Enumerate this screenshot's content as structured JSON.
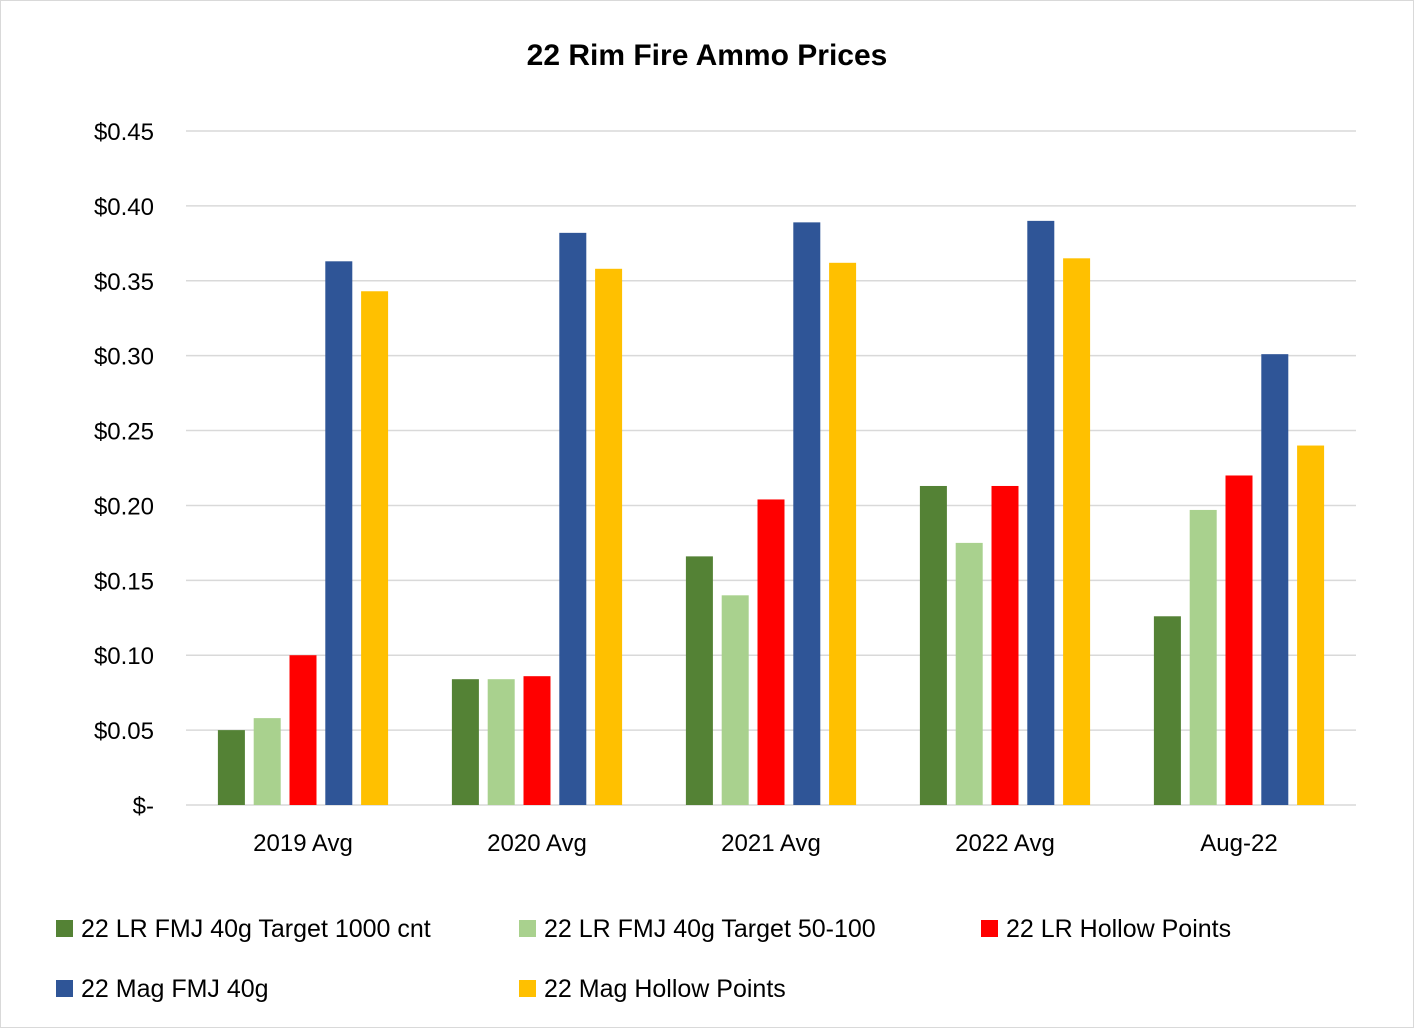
{
  "chart_data": {
    "type": "bar",
    "title": "22 Rim Fire Ammo Prices",
    "categories": [
      "2019 Avg",
      "2020 Avg",
      "2021 Avg",
      "2022 Avg",
      "Aug-22"
    ],
    "ylim": [
      0,
      0.45
    ],
    "y_ticks": [
      0,
      0.05,
      0.1,
      0.15,
      0.2,
      0.25,
      0.3,
      0.35,
      0.4,
      0.45
    ],
    "y_tick_labels": [
      "$-",
      "$0.05",
      "$0.10",
      "$0.15",
      "$0.20",
      "$0.25",
      "$0.30",
      "$0.35",
      "$0.40",
      "$0.45"
    ],
    "grid": true,
    "legend_position": "bottom",
    "series": [
      {
        "name": "22 LR FMJ 40g Target 1000 cnt",
        "color": "#548235",
        "values": [
          0.05,
          0.084,
          0.166,
          0.213,
          0.126
        ]
      },
      {
        "name": "22 LR FMJ 40g Target 50-100",
        "color": "#a9d18e",
        "values": [
          0.058,
          0.084,
          0.14,
          0.175,
          0.197
        ]
      },
      {
        "name": "22 LR Hollow Points",
        "color": "#ff0000",
        "values": [
          0.1,
          0.086,
          0.204,
          0.213,
          0.22
        ]
      },
      {
        "name": "22 Mag FMJ 40g",
        "color": "#2f5597",
        "values": [
          0.363,
          0.382,
          0.389,
          0.39,
          0.301
        ]
      },
      {
        "name": "22 Mag Hollow Points",
        "color": "#ffc000",
        "values": [
          0.343,
          0.358,
          0.362,
          0.365,
          0.24
        ]
      }
    ]
  }
}
